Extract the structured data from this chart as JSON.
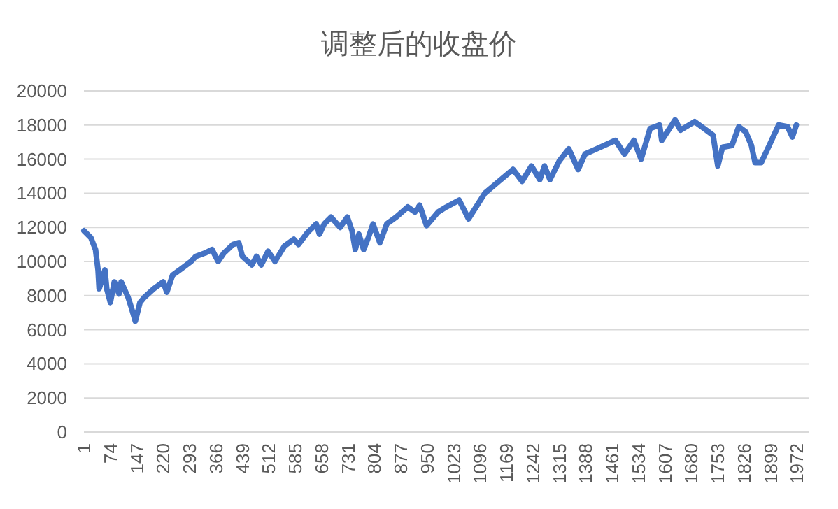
{
  "chart_data": {
    "type": "line",
    "title": "调整后的收盘价",
    "x": [
      1,
      20,
      33,
      40,
      43,
      59,
      64,
      74,
      85,
      98,
      104,
      123,
      132,
      143,
      156,
      168,
      194,
      220,
      230,
      246,
      272,
      297,
      310,
      336,
      355,
      372,
      388,
      413,
      429,
      439,
      465,
      478,
      491,
      510,
      529,
      555,
      581,
      594,
      619,
      643,
      652,
      665,
      684,
      709,
      729,
      742,
      751,
      761,
      774,
      787,
      800,
      819,
      838,
      864,
      896,
      916,
      929,
      948,
      980,
      1003,
      1038,
      1064,
      1109,
      1148,
      1187,
      1212,
      1238,
      1261,
      1274,
      1289,
      1315,
      1341,
      1367,
      1386,
      1418,
      1470,
      1495,
      1521,
      1541,
      1566,
      1592,
      1598,
      1635,
      1650,
      1689,
      1715,
      1740,
      1753,
      1766,
      1792,
      1811,
      1830,
      1846,
      1856,
      1873,
      1895,
      1921,
      1946,
      1959,
      1970
    ],
    "series": [
      {
        "color": "#4472c4",
        "values": [
          11800,
          11400,
          10700,
          9500,
          8400,
          9500,
          8400,
          7600,
          8800,
          8100,
          8800,
          7900,
          7300,
          6500,
          7600,
          7900,
          8400,
          8800,
          8200,
          9200,
          9600,
          10000,
          10300,
          10500,
          10700,
          10000,
          10500,
          11000,
          11100,
          10300,
          9800,
          10300,
          9800,
          10600,
          10000,
          10900,
          11300,
          11000,
          11700,
          12200,
          11600,
          12200,
          12600,
          12000,
          12600,
          11800,
          10700,
          11600,
          10700,
          11400,
          12200,
          11100,
          12200,
          12600,
          13200,
          12900,
          13300,
          12100,
          12900,
          13200,
          13600,
          12500,
          14000,
          14700,
          15400,
          14700,
          15600,
          14800,
          15600,
          14800,
          15900,
          16600,
          15400,
          16300,
          16600,
          17100,
          16300,
          17100,
          16000,
          17800,
          18000,
          17100,
          18300,
          17700,
          18200,
          17800,
          17400,
          15600,
          16700,
          16800,
          17900,
          17600,
          16800,
          15800,
          15800,
          16800,
          18000,
          17900,
          17300,
          18000
        ]
      }
    ],
    "xlim": [
      1,
      2004
    ],
    "xticks": [
      1,
      74,
      147,
      220,
      293,
      366,
      439,
      512,
      585,
      658,
      731,
      804,
      877,
      950,
      1023,
      1096,
      1169,
      1242,
      1315,
      1388,
      1461,
      1534,
      1607,
      1680,
      1753,
      1826,
      1899,
      1972
    ],
    "ylim": [
      0,
      20000
    ],
    "yticks": [
      0,
      2000,
      4000,
      6000,
      8000,
      10000,
      12000,
      14000,
      16000,
      18000,
      20000
    ],
    "grid": "y",
    "marker": "none",
    "line_style": "solid"
  }
}
